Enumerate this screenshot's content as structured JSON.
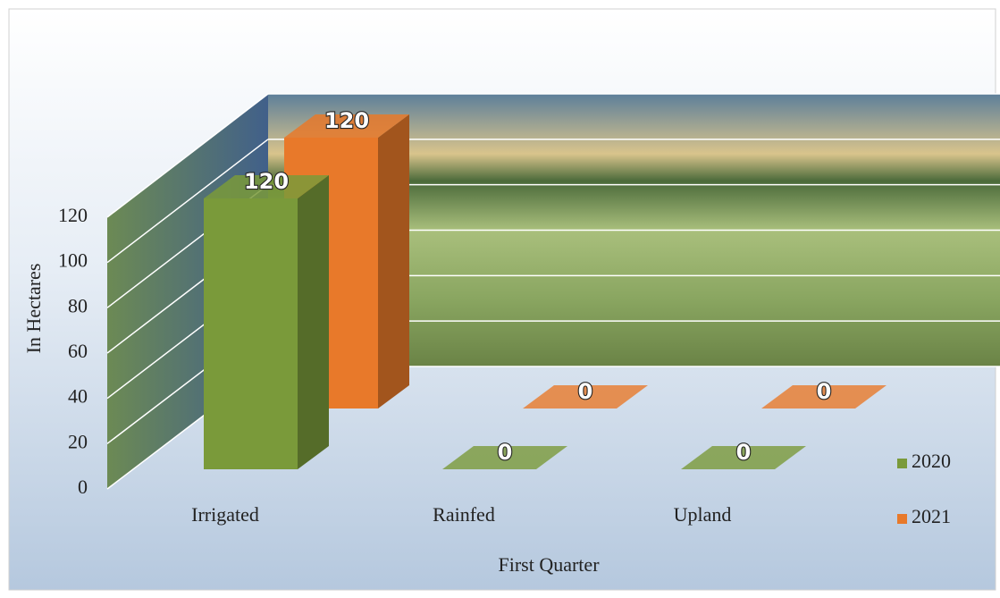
{
  "chart_data": {
    "type": "bar",
    "categories": [
      "Irrigated",
      "Rainfed",
      "Upland"
    ],
    "series": [
      {
        "name": "2020",
        "color": "#7a9a3a",
        "values": [
          120,
          0,
          0
        ]
      },
      {
        "name": "2021",
        "color": "#e8792a",
        "values": [
          120,
          0,
          0
        ]
      }
    ],
    "y_axis_label": "In Hectares",
    "x_axis_label": "First Quarter",
    "ylim": [
      0,
      120
    ],
    "yticks": [
      0,
      20,
      40,
      60,
      80,
      100,
      120
    ],
    "grid": true,
    "legend": "right"
  }
}
